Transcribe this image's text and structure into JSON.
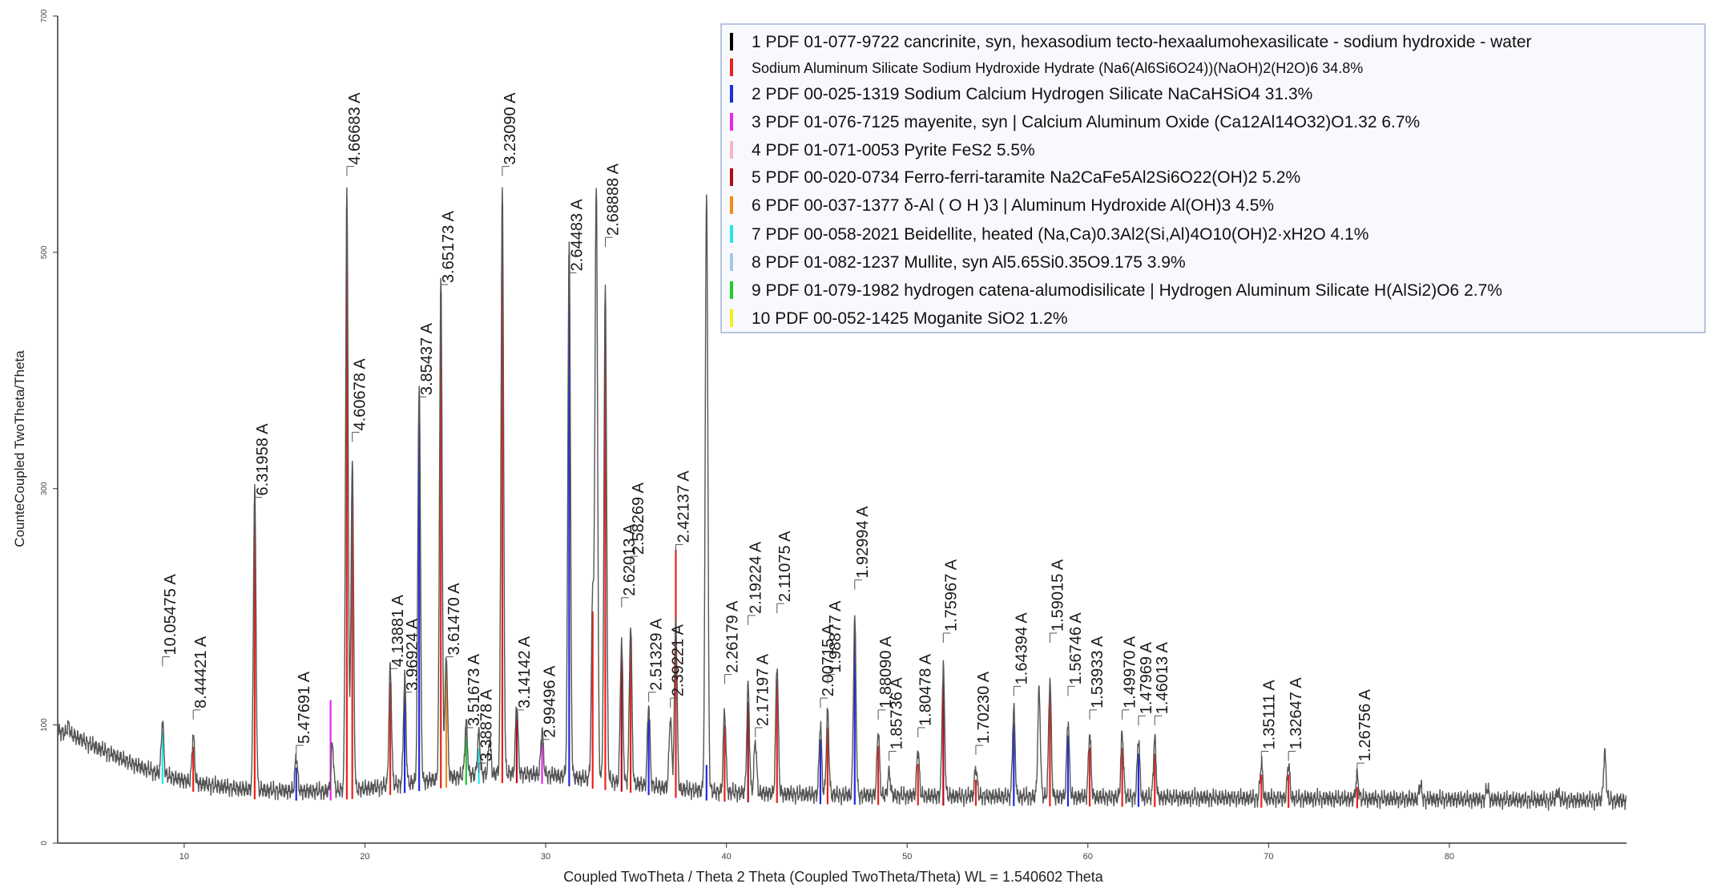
{
  "chart_data": {
    "type": "line",
    "title": "",
    "xlabel": "Coupled TwoTheta / Theta 2 Theta (Coupled TwoTheta/Theta) WL = 1.540602 Theta",
    "ylabel": "CounteCoupled TwoTheta/Theta",
    "xlim": [
      3.0,
      89.8
    ],
    "ylim": [
      0,
      700
    ],
    "x_ticks": [
      "10",
      "20",
      "30",
      "40",
      "50",
      "60",
      "70",
      "80"
    ],
    "x_tick_values": [
      10,
      20,
      30,
      40,
      50,
      60,
      70,
      80
    ],
    "y_ticks": [
      "0",
      "100",
      "300",
      "500",
      "700"
    ],
    "y_tick_values": [
      0,
      100,
      300,
      500,
      700
    ],
    "grid": false,
    "legend_position": "top-right",
    "legend": [
      {
        "label": "1 PDF 01-077-9722 cancrinite, syn, hexasodium tecto-hexaalumohexasilicate - sodium hydroxide - water",
        "color": "#000000",
        "small": false
      },
      {
        "label": "Sodium Aluminum Silicate Sodium Hydroxide Hydrate (Na6(Al6Si6O24))(NaOH)2(H2O)6 34.8%",
        "color": "#e8221c",
        "small": true
      },
      {
        "label": "2 PDF 00-025-1319 Sodium Calcium Hydrogen Silicate NaCaHSiO4 31.3%",
        "color": "#1c2ce0",
        "small": false
      },
      {
        "label": "3 PDF 01-076-7125 mayenite, syn | Calcium Aluminum Oxide (Ca12Al14O32)O1.32 6.7%",
        "color": "#ee22ee",
        "small": false
      },
      {
        "label": "4 PDF 01-071-0053 Pyrite FeS2 5.5%",
        "color": "#f6b6c2",
        "small": false
      },
      {
        "label": "5 PDF 00-020-0734 Ferro-ferri-taramite Na2CaFe5Al2Si6O22(OH)2 5.2%",
        "color": "#b40a1a",
        "small": false
      },
      {
        "label": "6 PDF 00-037-1377 δ-Al ( O H )3 | Aluminum Hydroxide Al(OH)3 4.5%",
        "color": "#f28a16",
        "small": false
      },
      {
        "label": "7 PDF 00-058-2021 Beidellite, heated (Na,Ca)0.3Al2(Si,Al)4O10(OH)2·xH2O 4.1%",
        "color": "#22e6ee",
        "small": false
      },
      {
        "label": "8 PDF 01-082-1237 Mullite, syn Al5.65Si0.35O9.175 3.9%",
        "color": "#a8c6e6",
        "small": false
      },
      {
        "label": "9 PDF 01-079-1982 hydrogen catena-alumodisilicate | Hydrogen Aluminum Silicate H(AlSi2)O6 2.7%",
        "color": "#1ecc2a",
        "small": false
      },
      {
        "label": "10 PDF 00-052-1425 Moganite SiO2 1.2%",
        "color": "#f4ee1a",
        "small": false
      }
    ],
    "series": [
      {
        "name": "Measured pattern",
        "color": "#555555",
        "background": [
          [
            3.0,
            95
          ],
          [
            4,
            90
          ],
          [
            5,
            82
          ],
          [
            6,
            75
          ],
          [
            7,
            68
          ],
          [
            8,
            62
          ],
          [
            9,
            57
          ],
          [
            10,
            53
          ],
          [
            11,
            50
          ],
          [
            12,
            48
          ],
          [
            13,
            46
          ],
          [
            14,
            45
          ],
          [
            16,
            44
          ],
          [
            18,
            44
          ],
          [
            20,
            46
          ],
          [
            22,
            50
          ],
          [
            24,
            54
          ],
          [
            26,
            58
          ],
          [
            28,
            59
          ],
          [
            30,
            58
          ],
          [
            32,
            55
          ],
          [
            34,
            52
          ],
          [
            36,
            48
          ],
          [
            38,
            45
          ],
          [
            40,
            43
          ],
          [
            45,
            41
          ],
          [
            50,
            40
          ],
          [
            60,
            39
          ],
          [
            70,
            38
          ],
          [
            80,
            37
          ],
          [
            89.8,
            36
          ]
        ],
        "peaks": [
          {
            "x": 3.6,
            "h": 8
          },
          {
            "x": 8.8,
            "h": 45
          },
          {
            "x": 10.5,
            "h": 40
          },
          {
            "x": 13.9,
            "h": 255
          },
          {
            "x": 16.2,
            "h": 30
          },
          {
            "x": 18.2,
            "h": 40
          },
          {
            "x": 19.0,
            "h": 505
          },
          {
            "x": 19.3,
            "h": 280
          },
          {
            "x": 21.4,
            "h": 100
          },
          {
            "x": 22.2,
            "h": 90
          },
          {
            "x": 23.0,
            "h": 340
          },
          {
            "x": 24.2,
            "h": 425
          },
          {
            "x": 24.5,
            "h": 105
          },
          {
            "x": 25.6,
            "h": 45
          },
          {
            "x": 26.3,
            "h": 35
          },
          {
            "x": 26.9,
            "h": 30
          },
          {
            "x": 27.6,
            "h": 495
          },
          {
            "x": 28.4,
            "h": 60
          },
          {
            "x": 29.8,
            "h": 38
          },
          {
            "x": 31.3,
            "h": 455
          },
          {
            "x": 32.6,
            "h": 155
          },
          {
            "x": 32.8,
            "h": 505
          },
          {
            "x": 33.3,
            "h": 420
          },
          {
            "x": 34.2,
            "h": 120
          },
          {
            "x": 34.7,
            "h": 135
          },
          {
            "x": 35.7,
            "h": 70
          },
          {
            "x": 36.9,
            "h": 60
          },
          {
            "x": 37.2,
            "h": 145
          },
          {
            "x": 38.9,
            "h": 510
          },
          {
            "x": 39.9,
            "h": 70
          },
          {
            "x": 41.2,
            "h": 90
          },
          {
            "x": 41.6,
            "h": 45
          },
          {
            "x": 42.8,
            "h": 110
          },
          {
            "x": 45.2,
            "h": 60
          },
          {
            "x": 45.6,
            "h": 70
          },
          {
            "x": 47.1,
            "h": 150
          },
          {
            "x": 48.4,
            "h": 55
          },
          {
            "x": 49.0,
            "h": 20
          },
          {
            "x": 50.6,
            "h": 40
          },
          {
            "x": 52.0,
            "h": 110
          },
          {
            "x": 53.8,
            "h": 25
          },
          {
            "x": 55.9,
            "h": 75
          },
          {
            "x": 57.3,
            "h": 90
          },
          {
            "x": 57.9,
            "h": 100
          },
          {
            "x": 58.9,
            "h": 65
          },
          {
            "x": 60.1,
            "h": 55
          },
          {
            "x": 61.9,
            "h": 55
          },
          {
            "x": 62.8,
            "h": 50
          },
          {
            "x": 63.7,
            "h": 50
          },
          {
            "x": 69.6,
            "h": 30
          },
          {
            "x": 71.1,
            "h": 30
          },
          {
            "x": 74.9,
            "h": 20
          },
          {
            "x": 78.4,
            "h": 12
          },
          {
            "x": 82.1,
            "h": 10
          },
          {
            "x": 86.0,
            "h": 8
          },
          {
            "x": 88.6,
            "h": 40
          }
        ]
      }
    ],
    "phase_sticks": [
      {
        "x": 8.8,
        "h": 45,
        "color": "#22e6ee"
      },
      {
        "x": 10.5,
        "h": 38,
        "color": "#e8221c"
      },
      {
        "x": 13.9,
        "h": 250,
        "color": "#e8221c"
      },
      {
        "x": 16.2,
        "h": 28,
        "color": "#1c2ce0"
      },
      {
        "x": 18.1,
        "h": 85,
        "color": "#ee22ee"
      },
      {
        "x": 19.0,
        "h": 500,
        "color": "#e8221c"
      },
      {
        "x": 19.3,
        "h": 270,
        "color": "#e8221c"
      },
      {
        "x": 21.4,
        "h": 95,
        "color": "#e8221c"
      },
      {
        "x": 22.2,
        "h": 85,
        "color": "#1c2ce0"
      },
      {
        "x": 23.0,
        "h": 330,
        "color": "#1c2ce0"
      },
      {
        "x": 24.2,
        "h": 420,
        "color": "#e8221c"
      },
      {
        "x": 24.5,
        "h": 100,
        "color": "#f28a16"
      },
      {
        "x": 25.6,
        "h": 40,
        "color": "#1ecc2a"
      },
      {
        "x": 26.3,
        "h": 30,
        "color": "#22e6ee"
      },
      {
        "x": 27.6,
        "h": 490,
        "color": "#e8221c"
      },
      {
        "x": 28.4,
        "h": 55,
        "color": "#b40a1a"
      },
      {
        "x": 29.8,
        "h": 35,
        "color": "#ee22ee"
      },
      {
        "x": 31.3,
        "h": 450,
        "color": "#1c2ce0"
      },
      {
        "x": 32.6,
        "h": 150,
        "color": "#e8221c"
      },
      {
        "x": 33.3,
        "h": 410,
        "color": "#e8221c"
      },
      {
        "x": 34.2,
        "h": 115,
        "color": "#b40a1a"
      },
      {
        "x": 34.7,
        "h": 130,
        "color": "#e8221c"
      },
      {
        "x": 35.7,
        "h": 65,
        "color": "#1c2ce0"
      },
      {
        "x": 37.2,
        "h": 210,
        "color": "#e8221c"
      },
      {
        "x": 38.9,
        "h": 30,
        "color": "#1c2ce0"
      },
      {
        "x": 39.9,
        "h": 65,
        "color": "#e8221c"
      },
      {
        "x": 41.2,
        "h": 85,
        "color": "#b40a1a"
      },
      {
        "x": 42.8,
        "h": 105,
        "color": "#e8221c"
      },
      {
        "x": 45.2,
        "h": 55,
        "color": "#1c2ce0"
      },
      {
        "x": 45.6,
        "h": 65,
        "color": "#e8221c"
      },
      {
        "x": 47.1,
        "h": 145,
        "color": "#1c2ce0"
      },
      {
        "x": 48.4,
        "h": 50,
        "color": "#e8221c"
      },
      {
        "x": 50.6,
        "h": 35,
        "color": "#e8221c"
      },
      {
        "x": 52.0,
        "h": 105,
        "color": "#b40a1a"
      },
      {
        "x": 53.8,
        "h": 22,
        "color": "#e8221c"
      },
      {
        "x": 55.9,
        "h": 70,
        "color": "#1c2ce0"
      },
      {
        "x": 57.9,
        "h": 95,
        "color": "#e8221c"
      },
      {
        "x": 58.9,
        "h": 60,
        "color": "#1c2ce0"
      },
      {
        "x": 60.1,
        "h": 50,
        "color": "#e8221c"
      },
      {
        "x": 61.9,
        "h": 50,
        "color": "#e8221c"
      },
      {
        "x": 62.8,
        "h": 45,
        "color": "#1c2ce0"
      },
      {
        "x": 63.7,
        "h": 45,
        "color": "#e8221c"
      },
      {
        "x": 69.6,
        "h": 28,
        "color": "#e8221c"
      },
      {
        "x": 71.1,
        "h": 28,
        "color": "#e8221c"
      },
      {
        "x": 74.9,
        "h": 18,
        "color": "#e8221c"
      }
    ],
    "annotations": [
      {
        "text": "10.05475 A",
        "x": 8.8,
        "y": 155
      },
      {
        "text": "8.44421 A",
        "x": 10.5,
        "y": 110
      },
      {
        "text": "6.31958 A",
        "x": 13.9,
        "y": 290
      },
      {
        "text": "5.47691 A",
        "x": 16.2,
        "y": 80
      },
      {
        "text": "4.66683 A",
        "x": 19.0,
        "y": 570
      },
      {
        "text": "4.60678 A",
        "x": 19.3,
        "y": 345
      },
      {
        "text": "4.13881 A",
        "x": 21.4,
        "y": 145
      },
      {
        "text": "3.96924 A",
        "x": 22.2,
        "y": 125
      },
      {
        "text": "3.85437 A",
        "x": 23.0,
        "y": 375
      },
      {
        "text": "3.65173 A",
        "x": 24.2,
        "y": 470
      },
      {
        "text": "3.61470 A",
        "x": 24.5,
        "y": 155
      },
      {
        "text": "3.51673 A",
        "x": 25.6,
        "y": 95
      },
      {
        "text": "3.38878 A",
        "x": 26.3,
        "y": 65
      },
      {
        "text": "3.23090 A",
        "x": 27.6,
        "y": 570
      },
      {
        "text": "3.14142 A",
        "x": 28.4,
        "y": 110
      },
      {
        "text": "2.99496 A",
        "x": 29.8,
        "y": 85
      },
      {
        "text": "2.64483 A",
        "x": 31.3,
        "y": 480
      },
      {
        "text": "2.68888 A",
        "x": 33.3,
        "y": 510
      },
      {
        "text": "2.62013 A",
        "x": 34.2,
        "y": 205
      },
      {
        "text": "2.58269 A",
        "x": 34.7,
        "y": 240
      },
      {
        "text": "2.51329 A",
        "x": 35.7,
        "y": 125
      },
      {
        "text": "2.42137 A",
        "x": 37.2,
        "y": 250
      },
      {
        "text": "2.39221 A",
        "x": 36.9,
        "y": 120
      },
      {
        "text": "2.26179 A",
        "x": 39.9,
        "y": 140
      },
      {
        "text": "2.19224 A",
        "x": 41.2,
        "y": 190
      },
      {
        "text": "2.17197 A",
        "x": 41.6,
        "y": 95
      },
      {
        "text": "2.11075 A",
        "x": 42.8,
        "y": 200
      },
      {
        "text": "2.00715 A",
        "x": 45.2,
        "y": 120
      },
      {
        "text": "1.98877 A",
        "x": 45.6,
        "y": 140
      },
      {
        "text": "1.92994 A",
        "x": 47.1,
        "y": 220
      },
      {
        "text": "1.88090 A",
        "x": 48.4,
        "y": 110
      },
      {
        "text": "1.85736 A",
        "x": 49.0,
        "y": 75
      },
      {
        "text": "1.80478 A",
        "x": 50.6,
        "y": 95
      },
      {
        "text": "1.75967 A",
        "x": 52.0,
        "y": 175
      },
      {
        "text": "1.70230 A",
        "x": 53.8,
        "y": 80
      },
      {
        "text": "1.64394 A",
        "x": 55.9,
        "y": 130
      },
      {
        "text": "1.59015 A",
        "x": 57.9,
        "y": 175
      },
      {
        "text": "1.56746 A",
        "x": 58.9,
        "y": 130
      },
      {
        "text": "1.53933 A",
        "x": 60.1,
        "y": 110
      },
      {
        "text": "1.49970 A",
        "x": 61.9,
        "y": 110
      },
      {
        "text": "1.47969 A",
        "x": 62.8,
        "y": 105
      },
      {
        "text": "1.46013 A",
        "x": 63.7,
        "y": 105
      },
      {
        "text": "1.35111 A",
        "x": 69.6,
        "y": 75
      },
      {
        "text": "1.32647 A",
        "x": 71.1,
        "y": 75
      },
      {
        "text": "1.26756 A",
        "x": 74.9,
        "y": 65
      }
    ]
  }
}
